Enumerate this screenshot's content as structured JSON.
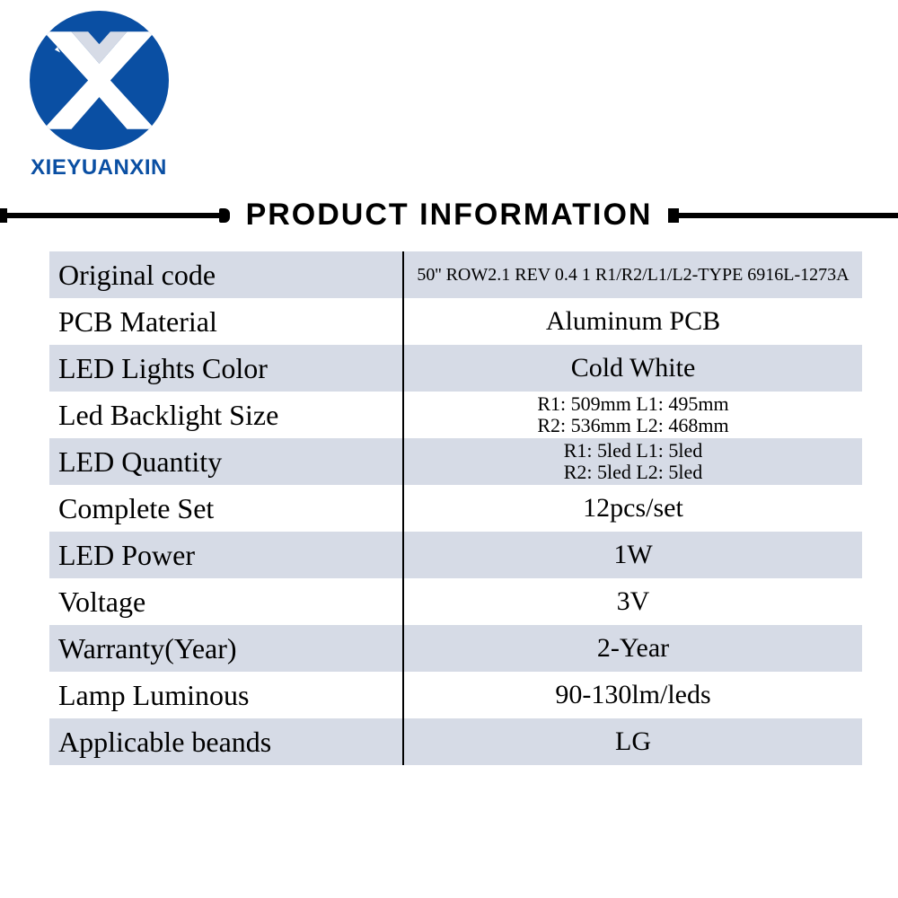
{
  "brand": {
    "name": "XIEYUANXIN",
    "logo_color": "#0a4fa3"
  },
  "section_title": "PRODUCT INFORMATION",
  "colors": {
    "row_alt_bg": "#d6dbe6",
    "row_bg": "#ffffff",
    "text": "#000000",
    "divider": "#000000"
  },
  "rows": [
    {
      "label": "Original code",
      "value": "50'' ROW2.1 REV 0.4 1 R1/R2/L1/L2-TYPE 6916L-1273A",
      "small": true
    },
    {
      "label": "PCB Material",
      "value": "Aluminum PCB"
    },
    {
      "label": "LED Lights Color",
      "value": "Cold White"
    },
    {
      "label": "Led Backlight Size",
      "value_lines": [
        "R1: 509mm L1: 495mm",
        "R2: 536mm L2: 468mm"
      ]
    },
    {
      "label": "LED Quantity",
      "value_lines": [
        "R1: 5led L1: 5led",
        "R2: 5led L2: 5led"
      ]
    },
    {
      "label": "Complete Set",
      "value": "12pcs/set"
    },
    {
      "label": "LED Power",
      "value": "1W"
    },
    {
      "label": "Voltage",
      "value": "3V"
    },
    {
      "label": "Warranty(Year)",
      "value": "2-Year"
    },
    {
      "label": "Lamp Luminous",
      "value": "90-130lm/leds"
    },
    {
      "label": "Applicable beands",
      "value": "LG"
    }
  ]
}
